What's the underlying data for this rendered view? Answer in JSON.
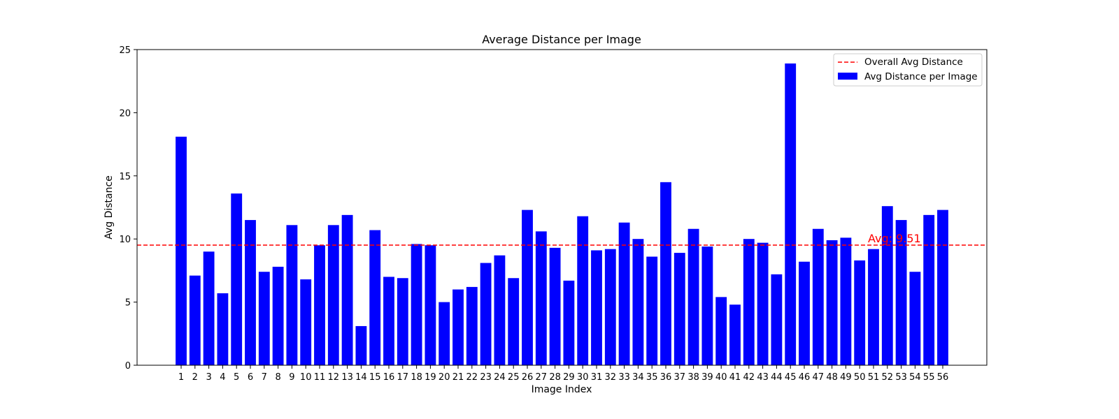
{
  "chart_data": {
    "type": "bar",
    "title": "Average Distance per Image",
    "xlabel": "Image Index",
    "ylabel": "Avg Distance",
    "ylim": [
      0,
      25
    ],
    "yticks": [
      "0",
      "5",
      "10",
      "15",
      "20",
      "25"
    ],
    "categories": [
      "1",
      "2",
      "3",
      "4",
      "5",
      "6",
      "7",
      "8",
      "9",
      "10",
      "11",
      "12",
      "13",
      "14",
      "15",
      "16",
      "17",
      "18",
      "19",
      "20",
      "21",
      "22",
      "23",
      "24",
      "25",
      "26",
      "27",
      "28",
      "29",
      "30",
      "31",
      "32",
      "33",
      "34",
      "35",
      "36",
      "37",
      "38",
      "39",
      "40",
      "41",
      "42",
      "43",
      "44",
      "45",
      "46",
      "47",
      "48",
      "49",
      "50",
      "51",
      "52",
      "53",
      "54",
      "55",
      "56"
    ],
    "series": [
      {
        "name": "Avg Distance per Image",
        "color": "#0000ff",
        "values": [
          18.1,
          7.1,
          9.0,
          5.7,
          13.6,
          11.5,
          7.4,
          7.8,
          11.1,
          6.8,
          9.5,
          11.1,
          11.9,
          3.1,
          10.7,
          7.0,
          6.9,
          9.6,
          9.5,
          5.0,
          6.0,
          6.2,
          8.1,
          8.7,
          6.9,
          12.3,
          10.6,
          9.3,
          6.7,
          11.8,
          9.1,
          9.2,
          11.3,
          10.0,
          8.6,
          14.5,
          8.9,
          10.8,
          9.4,
          5.4,
          4.8,
          10.0,
          9.7,
          7.2,
          23.9,
          8.2,
          10.8,
          9.9,
          10.1,
          8.3,
          9.2,
          12.6,
          11.5,
          7.4,
          11.9,
          12.3
        ]
      }
    ],
    "reference_line": {
      "name": "Overall Avg Distance",
      "value": 9.51,
      "label": "Avg: 9.51",
      "color": "#ff0000",
      "style": "dashed"
    },
    "legend_position": "top-right",
    "grid": false
  }
}
